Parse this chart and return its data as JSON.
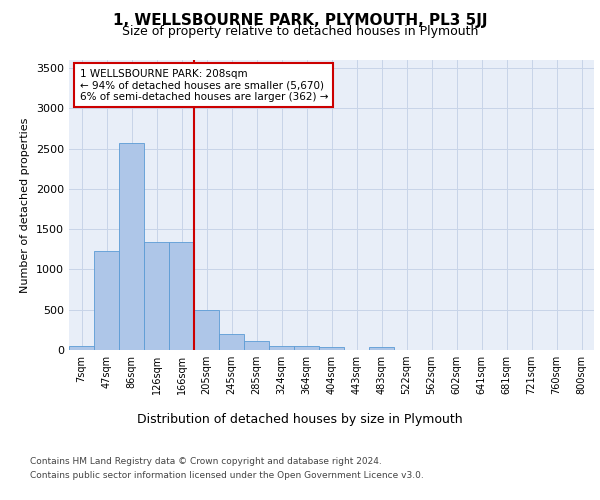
{
  "title": "1, WELLSBOURNE PARK, PLYMOUTH, PL3 5JJ",
  "subtitle": "Size of property relative to detached houses in Plymouth",
  "xlabel": "Distribution of detached houses by size in Plymouth",
  "ylabel": "Number of detached properties",
  "categories": [
    "7sqm",
    "47sqm",
    "86sqm",
    "126sqm",
    "166sqm",
    "205sqm",
    "245sqm",
    "285sqm",
    "324sqm",
    "364sqm",
    "404sqm",
    "443sqm",
    "483sqm",
    "522sqm",
    "562sqm",
    "602sqm",
    "641sqm",
    "681sqm",
    "721sqm",
    "760sqm",
    "800sqm"
  ],
  "values": [
    55,
    1230,
    2570,
    1340,
    1340,
    500,
    200,
    110,
    50,
    50,
    35,
    0,
    35,
    0,
    0,
    0,
    0,
    0,
    0,
    0,
    0
  ],
  "bar_color": "#aec6e8",
  "bar_edge_color": "#5b9bd5",
  "vline_bin_index": 5,
  "vline_color": "#cc0000",
  "annotation_line1": "1 WELLSBOURNE PARK: 208sqm",
  "annotation_line2": "← 94% of detached houses are smaller (5,670)",
  "annotation_line3": "6% of semi-detached houses are larger (362) →",
  "annotation_box_color": "#cc0000",
  "ylim": [
    0,
    3600
  ],
  "yticks": [
    0,
    500,
    1000,
    1500,
    2000,
    2500,
    3000,
    3500
  ],
  "grid_color": "#c8d4e8",
  "background_color": "#e8eef8",
  "footer1": "Contains HM Land Registry data © Crown copyright and database right 2024.",
  "footer2": "Contains public sector information licensed under the Open Government Licence v3.0."
}
